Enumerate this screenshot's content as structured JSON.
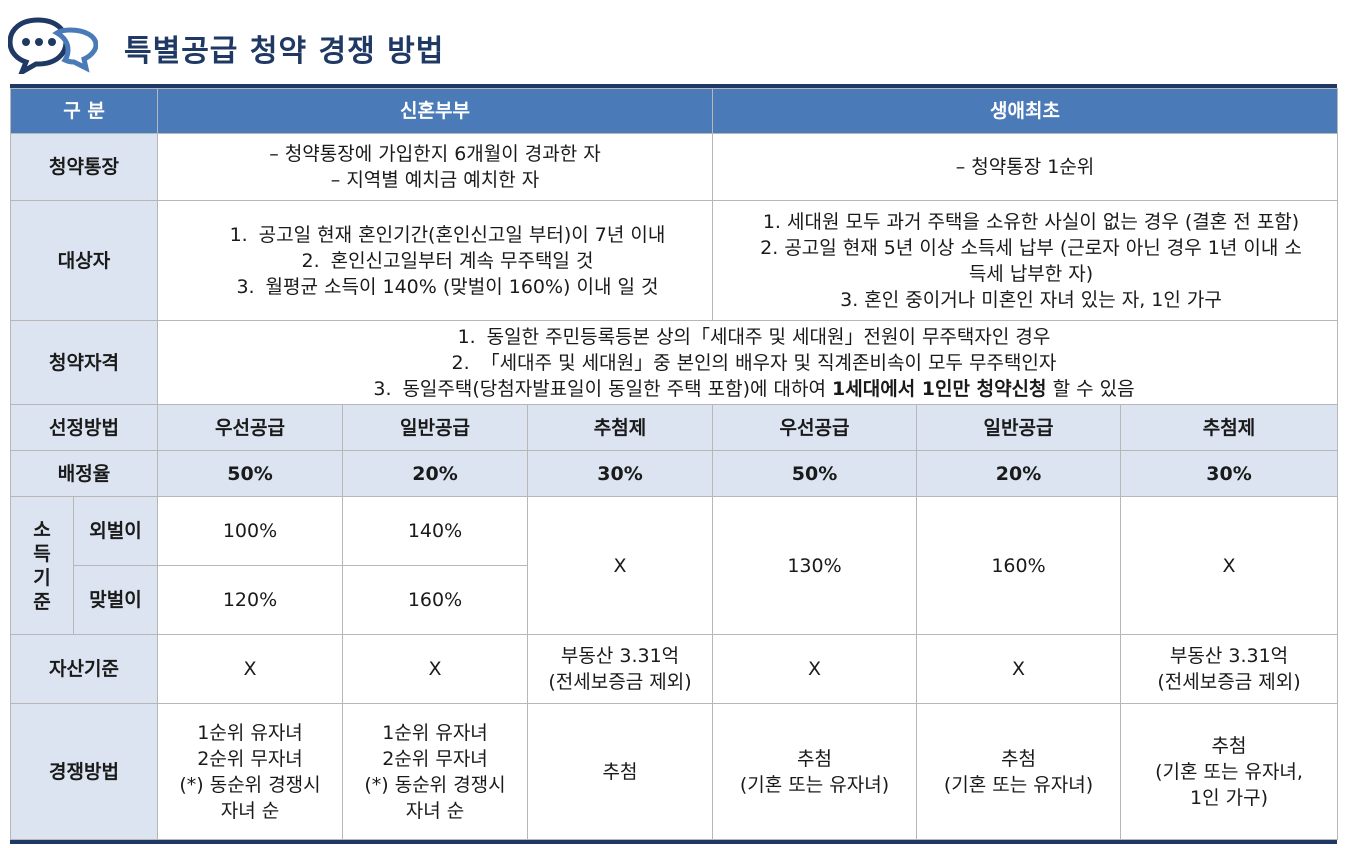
{
  "header": {
    "title": "특별공급 청약 경쟁 방법",
    "icon": "speech-bubbles-icon",
    "accent": "#1f3864"
  },
  "table": {
    "head": {
      "category": "구 분",
      "newlywed": "신혼부부",
      "first_time": "생애최초"
    },
    "account": {
      "label": "청약통장",
      "newlywed_lines": [
        "– 청약통장에 가입한지 6개월이 경과한 자",
        "– 지역별 예치금 예치한 자"
      ],
      "first_time": "– 청약통장 1순위"
    },
    "target": {
      "label": "대상자",
      "newlywed_items": [
        {
          "num": "1.",
          "text": "공고일 현재 혼인기간(혼인신고일 부터)이 7년 이내"
        },
        {
          "num": "2.",
          "text": "혼인신고일부터 계속 무주택일 것"
        },
        {
          "num": "3.",
          "text": "월평균 소득이 140% (맞벌이 160%) 이내 일 것"
        }
      ],
      "first_time_lines": [
        "1. 세대원 모두 과거 주택을 소유한 사실이 없는 경우 (결혼 전 포함)",
        "2. 공고일 현재 5년 이상 소득세 납부 (근로자 아닌 경우 1년 이내 소",
        "득세 납부한 자)",
        "3. 혼인 중이거나 미혼인 자녀 있는 자, 1인 가구"
      ]
    },
    "qualification": {
      "label": "청약자격",
      "items": [
        {
          "num": "1.",
          "text": "동일한 주민등록등본 상의「세대주 및 세대원」전원이 무주택자인 경우"
        },
        {
          "num": "2.",
          "text": "「세대주 및 세대원」중 본인의 배우자 및 직계존비속이 모두 무주택인자"
        },
        {
          "num": "3.",
          "text": "동일주택(당첨자발표일이 동일한 주택 포함)에 대하여",
          "strong": "1세대에서 1인만 청약신청",
          "tail": "할 수 있음"
        }
      ]
    },
    "method": {
      "label": "선정방법",
      "values": [
        "우선공급",
        "일반공급",
        "추첨제",
        "우선공급",
        "일반공급",
        "추첨제"
      ]
    },
    "ratio": {
      "label": "배정율",
      "values": [
        "50%",
        "20%",
        "30%",
        "50%",
        "20%",
        "30%"
      ]
    },
    "income": {
      "label": "소득기준",
      "label_chars": [
        "소",
        "득",
        "기",
        "준"
      ],
      "single": {
        "label": "외벌이",
        "values": [
          "100%",
          "140%"
        ]
      },
      "dual": {
        "label": "맞벌이",
        "values": [
          "120%",
          "160%"
        ]
      },
      "nl_lottery": "X",
      "ft_priority": "130%",
      "ft_general": "160%",
      "ft_lottery": "X"
    },
    "asset": {
      "label": "자산기준",
      "values": [
        "X",
        "X",
        "부동산 3.31억\n(전세보증금 제외)",
        "X",
        "X",
        "부동산 3.31억\n(전세보증금 제외)"
      ]
    },
    "competition": {
      "label": "경쟁방법",
      "nl_priority": [
        "1순위 유자녀",
        "2순위 무자녀",
        "(*) 동순위 경쟁시",
        "자녀 순"
      ],
      "nl_general": [
        "1순위 유자녀",
        "2순위 무자녀",
        "(*) 동순위 경쟁시",
        "자녀 순"
      ],
      "nl_lottery": [
        "추첨"
      ],
      "ft_priority": [
        "추첨",
        "(기혼 또는 유자녀)"
      ],
      "ft_general": [
        "추첨",
        "(기혼 또는 유자녀)"
      ],
      "ft_lottery": [
        "추첨",
        "(기혼 또는 유자녀,",
        "1인 가구)"
      ]
    }
  },
  "colors": {
    "header_bg": "#4a7ab8",
    "label_bg": "#dbe4f0",
    "rule": "#1f3864"
  }
}
